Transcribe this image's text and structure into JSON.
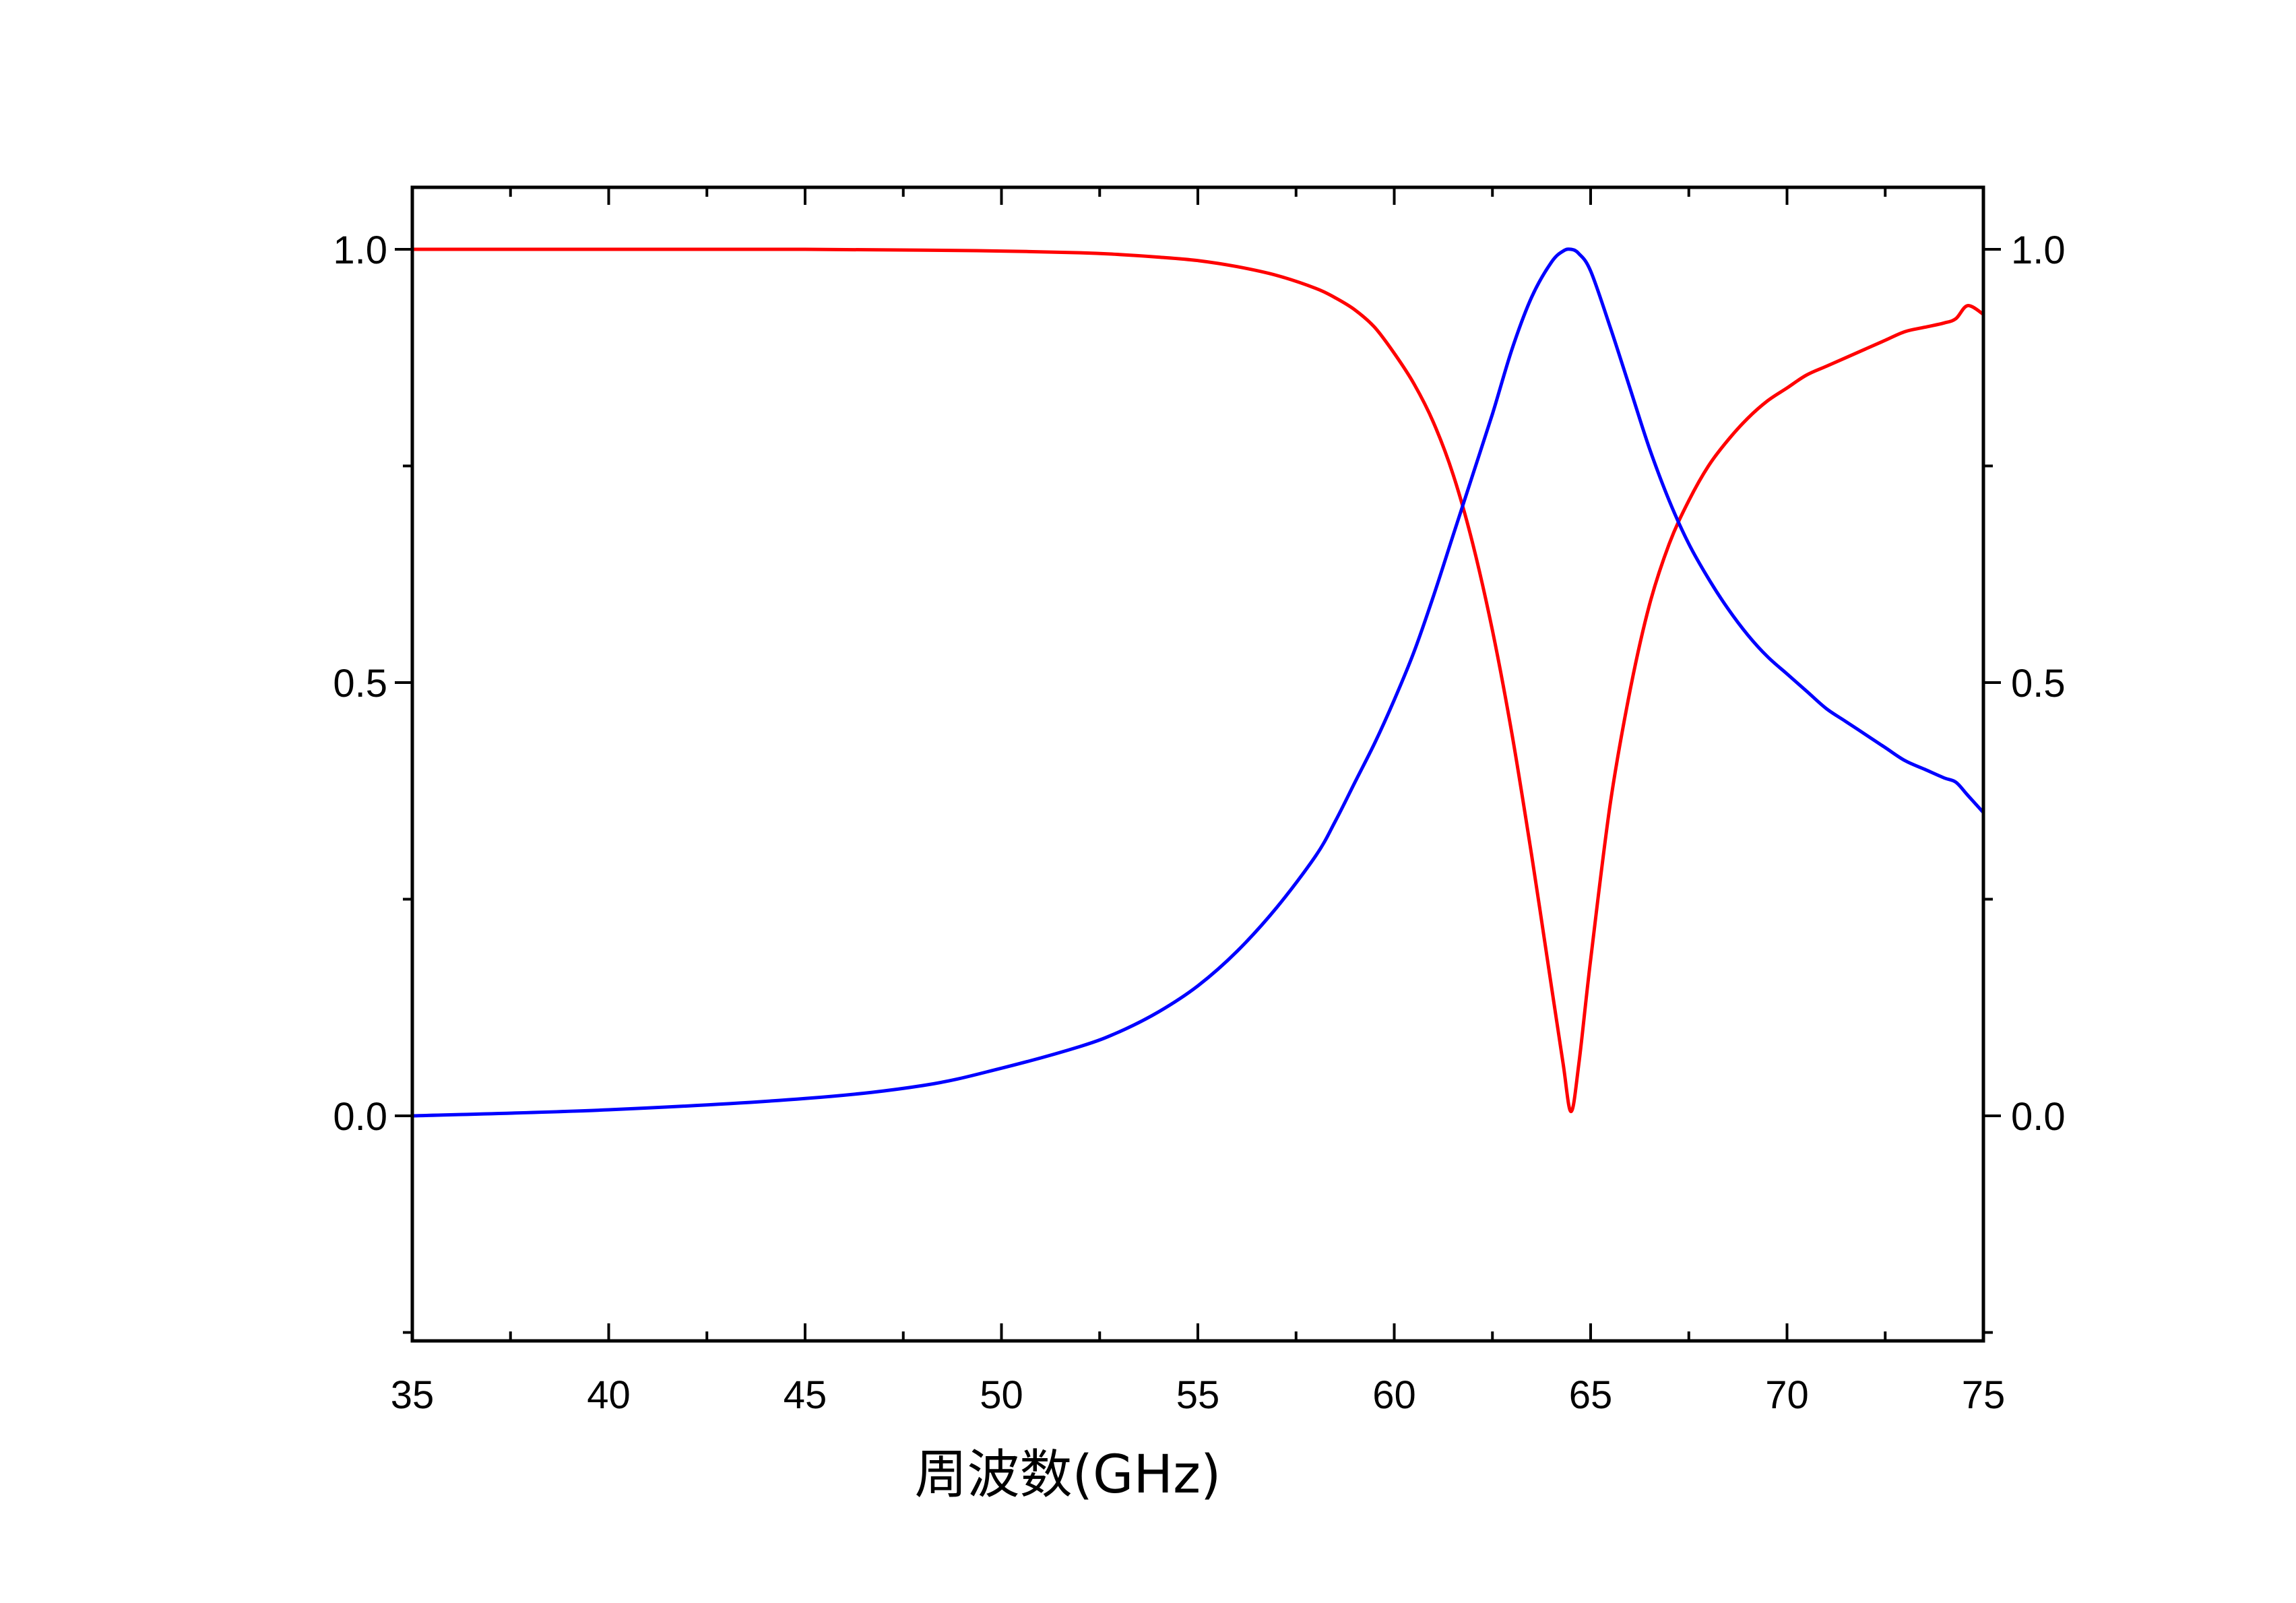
{
  "chart_data": {
    "type": "line",
    "title": "",
    "xlabel": "周波数(GHz)",
    "ylabel": "",
    "xlim": [
      35,
      75
    ],
    "ylim": [
      -0.26,
      1.07
    ],
    "x_ticks": [
      35,
      40,
      45,
      50,
      55,
      60,
      65,
      70,
      75
    ],
    "x_tick_labels": [
      "35",
      "40",
      "45",
      "50",
      "55",
      "60",
      "65",
      "70",
      "75"
    ],
    "x_minor_ticks": [
      37.5,
      42.5,
      47.5,
      52.5,
      57.5,
      62.5,
      67.5,
      72.5
    ],
    "y_ticks": [
      0.0,
      0.5,
      1.0
    ],
    "y_tick_labels": [
      "0.0",
      "0.5",
      "1.0"
    ],
    "y_minor_ticks": [
      -0.25,
      0.25,
      0.75
    ],
    "right_axis_mirrored": true,
    "grid": false,
    "legend": "none",
    "series": [
      {
        "color": "#ff0000",
        "x": [
          35,
          40,
          45,
          48,
          50,
          52,
          53,
          54,
          55,
          56,
          57,
          58,
          58.5,
          59,
          59.5,
          60,
          60.5,
          61,
          61.5,
          62,
          62.5,
          63,
          63.5,
          64,
          64.3,
          64.5,
          64.7,
          65,
          65.5,
          66,
          66.5,
          67,
          67.5,
          68,
          68.5,
          69,
          69.5,
          70,
          70.5,
          71,
          71.5,
          72,
          72.5,
          73,
          73.5,
          74,
          74.3,
          74.6,
          75
        ],
        "y": [
          1.0,
          1.0,
          1.0,
          0.999,
          0.998,
          0.996,
          0.994,
          0.991,
          0.987,
          0.98,
          0.97,
          0.955,
          0.944,
          0.93,
          0.91,
          0.88,
          0.845,
          0.8,
          0.74,
          0.66,
          0.56,
          0.44,
          0.3,
          0.15,
          0.06,
          0.005,
          0.06,
          0.18,
          0.36,
          0.49,
          0.59,
          0.66,
          0.71,
          0.75,
          0.78,
          0.805,
          0.825,
          0.84,
          0.855,
          0.865,
          0.875,
          0.885,
          0.895,
          0.905,
          0.91,
          0.915,
          0.92,
          0.935,
          0.925
        ]
      },
      {
        "color": "#0000ff",
        "x": [
          35,
          40,
          45,
          48,
          50,
          52,
          53,
          54,
          55,
          56,
          57,
          58,
          58.5,
          59,
          59.5,
          60,
          60.5,
          61,
          61.5,
          62,
          62.5,
          63,
          63.5,
          64,
          64.3,
          64.5,
          64.7,
          65,
          65.5,
          66,
          66.5,
          67,
          67.5,
          68,
          68.5,
          69,
          69.5,
          70,
          70.5,
          71,
          71.5,
          72,
          72.5,
          73,
          73.5,
          74,
          74.3,
          74.6,
          75
        ],
        "y": [
          0.0,
          0.007,
          0.02,
          0.035,
          0.055,
          0.08,
          0.097,
          0.12,
          0.15,
          0.19,
          0.24,
          0.3,
          0.34,
          0.385,
          0.43,
          0.48,
          0.535,
          0.6,
          0.67,
          0.74,
          0.81,
          0.885,
          0.945,
          0.985,
          0.998,
          1.0,
          0.995,
          0.975,
          0.91,
          0.84,
          0.77,
          0.71,
          0.66,
          0.62,
          0.585,
          0.555,
          0.53,
          0.51,
          0.49,
          0.47,
          0.455,
          0.44,
          0.425,
          0.41,
          0.4,
          0.39,
          0.385,
          0.37,
          0.35
        ]
      }
    ]
  }
}
